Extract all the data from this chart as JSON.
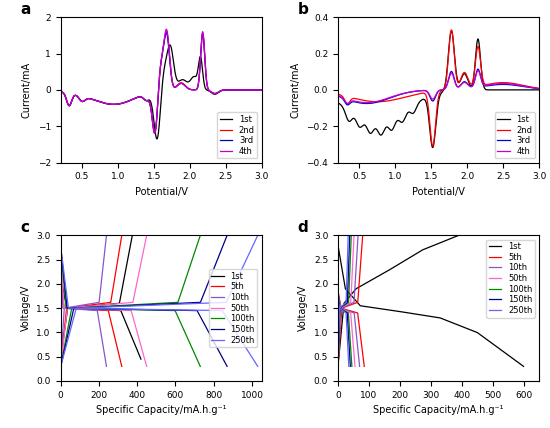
{
  "fig_width": 5.5,
  "fig_height": 4.28,
  "dpi": 100,
  "cv_colors": {
    "1st": "#000000",
    "2nd": "#ff0000",
    "3rd": "#0000cc",
    "4th": "#cc00cc"
  },
  "gcd_colors": {
    "1st": "#000000",
    "5th": "#ff0000",
    "10th": "#8855cc",
    "50th": "#ff66cc",
    "100th": "#008800",
    "150th": "#000088",
    "250th": "#6666ff"
  },
  "panel_a": {
    "xlabel": "Potential/V",
    "ylabel": "Current/mA",
    "xlim": [
      0.2,
      3.0
    ],
    "ylim": [
      -2.0,
      2.0
    ],
    "xticks": [
      0.5,
      1.0,
      1.5,
      2.0,
      2.5,
      3.0
    ],
    "yticks": [
      -2,
      -1,
      0,
      1,
      2
    ]
  },
  "panel_b": {
    "xlabel": "Potential/V",
    "ylabel": "Current/mA",
    "xlim": [
      0.2,
      3.0
    ],
    "ylim": [
      -0.4,
      0.4
    ],
    "xticks": [
      0.5,
      1.0,
      1.5,
      2.0,
      2.5,
      3.0
    ],
    "yticks": [
      -0.4,
      -0.2,
      0.0,
      0.2,
      0.4
    ]
  },
  "panel_c": {
    "xlabel": "Specific Capacity/mA.h.g⁻¹",
    "ylabel": "Voltage/V",
    "xlim": [
      0,
      1050
    ],
    "ylim": [
      0.0,
      3.0
    ],
    "xticks": [
      0,
      200,
      400,
      600,
      800,
      1000
    ],
    "yticks": [
      0.0,
      0.5,
      1.0,
      1.5,
      2.0,
      2.5,
      3.0
    ]
  },
  "panel_d": {
    "xlabel": "Specific Capacity/mA.h.g⁻¹",
    "ylabel": "Voltage/V",
    "xlim": [
      0,
      650
    ],
    "ylim": [
      0.0,
      3.0
    ],
    "xticks": [
      0,
      100,
      200,
      300,
      400,
      500,
      600
    ],
    "yticks": [
      0.0,
      0.5,
      1.0,
      1.5,
      2.0,
      2.5,
      3.0
    ]
  }
}
